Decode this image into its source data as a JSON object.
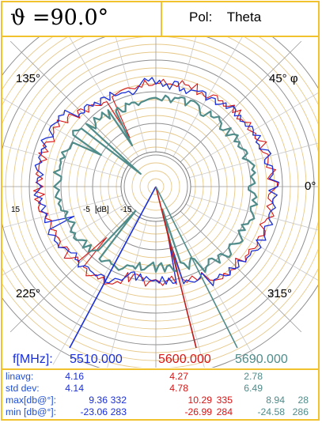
{
  "header": {
    "theta_text": "ϑ =90.0°",
    "pol_label": "Pol:",
    "pol_value": "Theta"
  },
  "chart_data": {
    "type": "polar-line",
    "radial_unit": "[dB]",
    "radial_tick_labels": [
      "15",
      "-5",
      "-15"
    ],
    "angle_labels": [
      "0°",
      "45° φ",
      "135°",
      "225°",
      "315°"
    ],
    "frequency_label": "f[MHz]:",
    "series": [
      {
        "name": "5510.000",
        "color": "#1a2fd8"
      },
      {
        "name": "5600.000",
        "color": "#d81414"
      },
      {
        "name": "5690.000",
        "color": "#4f8c8a"
      }
    ]
  },
  "stats": {
    "rows": [
      {
        "label": "linavg:",
        "blue": [
          "4.16"
        ],
        "red": [
          "4.27"
        ],
        "teal": [
          "2.78"
        ]
      },
      {
        "label": "std dev:",
        "blue": [
          "4.14"
        ],
        "red": [
          "4.78"
        ],
        "teal": [
          "6.49"
        ]
      },
      {
        "label": "max[db@°]:",
        "blue": [
          "9.36",
          "332"
        ],
        "red": [
          "10.29",
          "335"
        ],
        "teal": [
          "8.94",
          "28"
        ]
      },
      {
        "label": "min [db@°]:",
        "blue": [
          "-23.06",
          "283"
        ],
        "red": [
          "-26.99",
          "284"
        ],
        "teal": [
          "-24.58",
          "286"
        ]
      }
    ]
  }
}
